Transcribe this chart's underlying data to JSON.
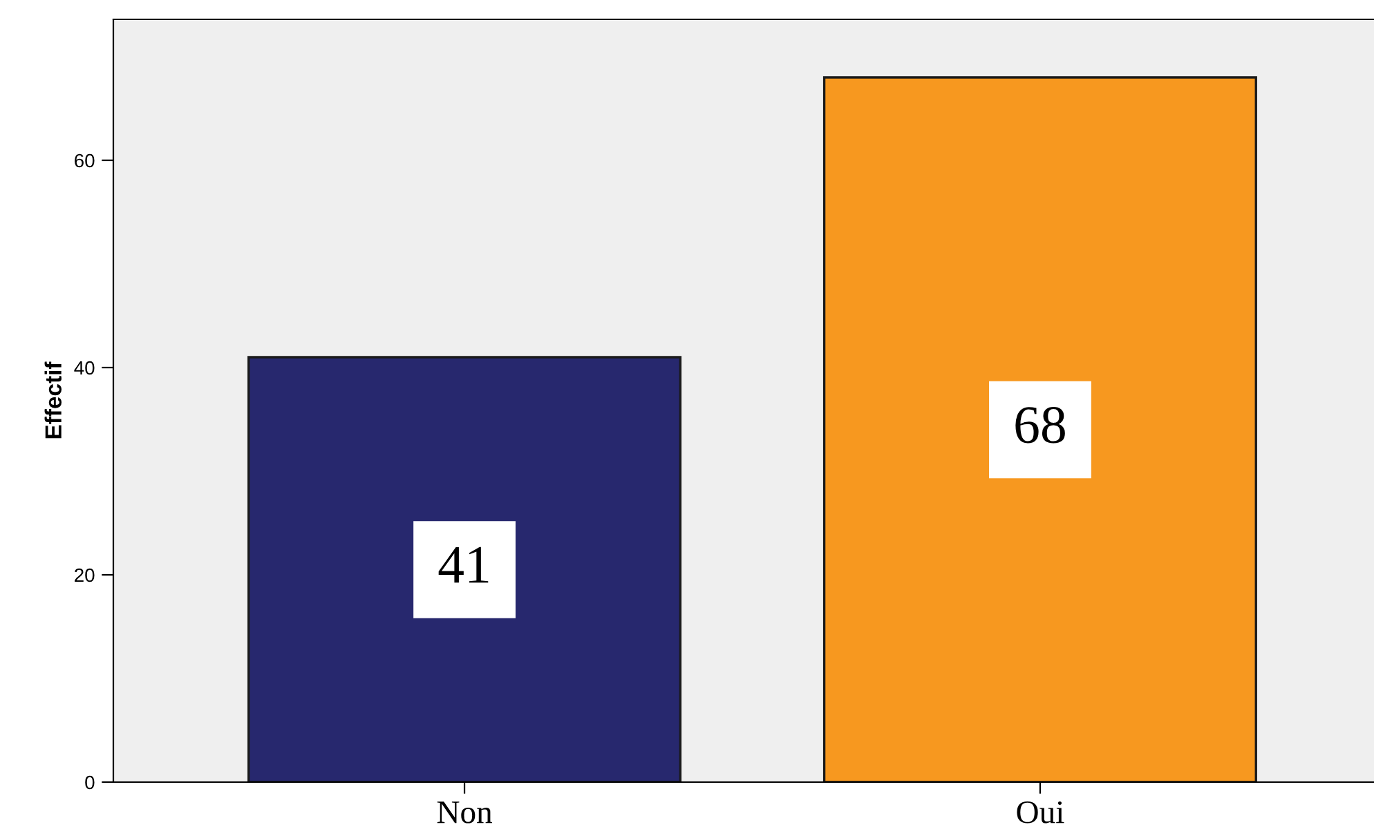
{
  "chart_data": {
    "type": "bar",
    "ylabel": "Effectif",
    "categories": [
      "Non",
      "Oui"
    ],
    "values": [
      41,
      68
    ],
    "colors": [
      "#27286e",
      "#f7981f"
    ],
    "ylim": [
      0,
      73.6
    ],
    "yticks": [
      0,
      20,
      40,
      60
    ],
    "grid": false,
    "data_labels": true
  }
}
